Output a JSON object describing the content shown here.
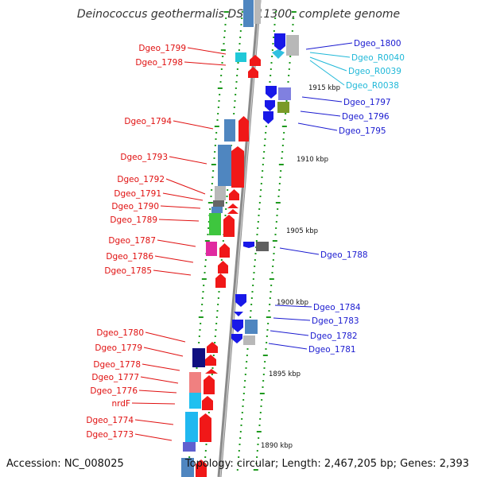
{
  "title": "Deinococcus geothermalis DSM 11300, complete genome",
  "footer": {
    "accession": "Accession: NC_008025",
    "info": "Topology: circular; Length: 2,467,205 bp; Genes: 2,393"
  },
  "colors": {
    "left_label": "#e01010",
    "right_label": "#1a1ad0",
    "rna_label": "#20b8d8",
    "backbone": "#888888",
    "tick": "#1e9a1e"
  },
  "left_genes": [
    "Dgeo_1799",
    "Dgeo_1798",
    "Dgeo_1794",
    "Dgeo_1793",
    "Dgeo_1792",
    "Dgeo_1791",
    "Dgeo_1790",
    "Dgeo_1789",
    "Dgeo_1787",
    "Dgeo_1786",
    "Dgeo_1785",
    "Dgeo_1780",
    "Dgeo_1779",
    "Dgeo_1778",
    "Dgeo_1777",
    "Dgeo_1776",
    "nrdF",
    "Dgeo_1774",
    "Dgeo_1773"
  ],
  "right_genes": [
    {
      "name": "Dgeo_1800",
      "kind": "gene"
    },
    {
      "name": "Dgeo_R0040",
      "kind": "rna"
    },
    {
      "name": "Dgeo_R0039",
      "kind": "rna"
    },
    {
      "name": "Dgeo_R0038",
      "kind": "rna"
    },
    {
      "name": "Dgeo_1797",
      "kind": "gene"
    },
    {
      "name": "Dgeo_1796",
      "kind": "gene"
    },
    {
      "name": "Dgeo_1795",
      "kind": "gene"
    },
    {
      "name": "Dgeo_1788",
      "kind": "gene"
    },
    {
      "name": "Dgeo_1784",
      "kind": "gene"
    },
    {
      "name": "Dgeo_1783",
      "kind": "gene"
    },
    {
      "name": "Dgeo_1782",
      "kind": "gene"
    },
    {
      "name": "Dgeo_1781",
      "kind": "gene"
    }
  ],
  "scale_labels": [
    "1915 kbp",
    "1910 kbp",
    "1905 kbp",
    "1900 kbp",
    "1895 kbp",
    "1890 kbp"
  ]
}
